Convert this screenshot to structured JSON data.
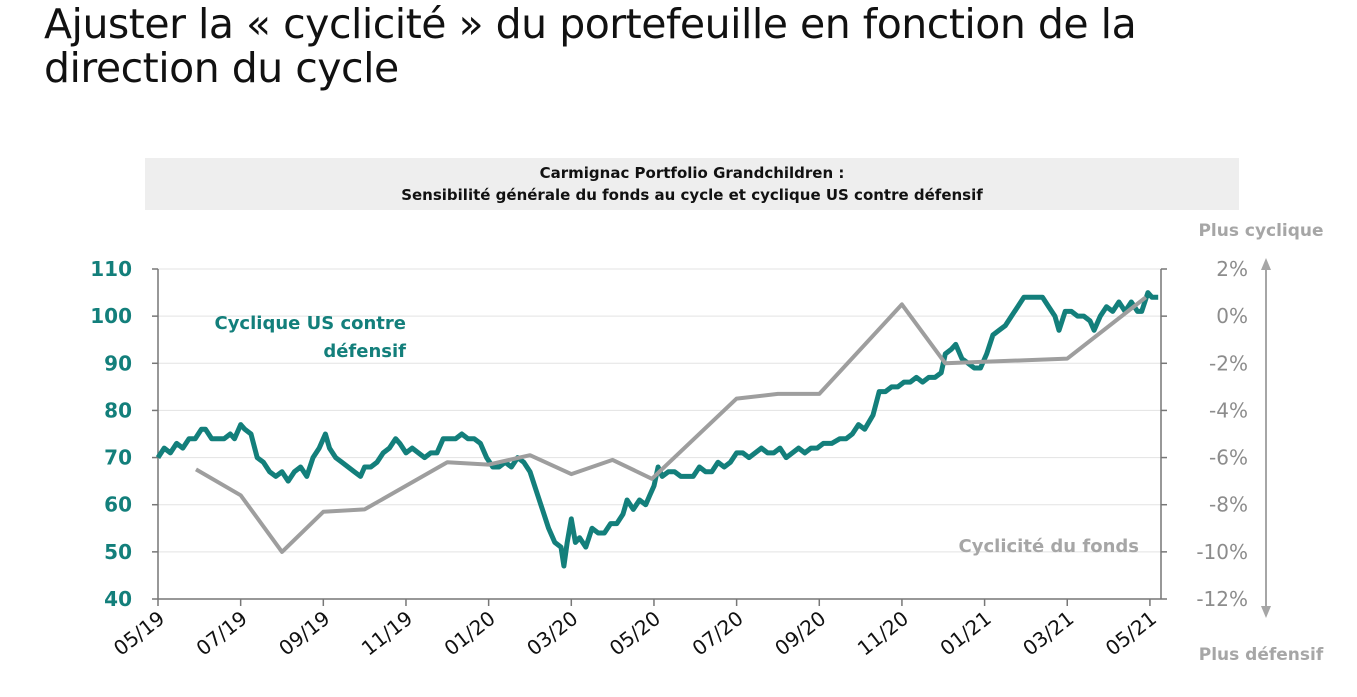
{
  "page_title": "Ajuster la « cyclicité » du portefeuille en fonction de la direction du cycle",
  "banner": {
    "line1": "Carmignac Portfolio Grandchildren :",
    "line2": "Sensibilité générale du fonds au cycle et cyclique US contre défensif"
  },
  "side_labels": {
    "top": "Plus cyclique",
    "bottom": "Plus défensif"
  },
  "colors": {
    "teal": "#137f7b",
    "gray": "#9e9e9e",
    "grid": "#e3e3e3"
  },
  "chart_data": {
    "type": "line",
    "x_tick_labels": [
      "05/19",
      "07/19",
      "09/19",
      "11/19",
      "01/20",
      "03/20",
      "05/20",
      "07/20",
      "09/20",
      "11/20",
      "01/21",
      "03/21",
      "05/21"
    ],
    "x_unit": "months since 05/19",
    "xlim": [
      0,
      24.3
    ],
    "left_axis": {
      "ylim": [
        40,
        110
      ],
      "ticks": [
        "40",
        "50",
        "60",
        "70",
        "80",
        "90",
        "100",
        "110"
      ]
    },
    "right_axis": {
      "ylim": [
        -12,
        2
      ],
      "ticks": [
        "-12%",
        "-10%",
        "-8%",
        "-6%",
        "-4%",
        "-2%",
        "0%",
        "2%"
      ]
    },
    "grid": true,
    "series": [
      {
        "name": "Cyclique US contre défensif",
        "label_line1": "Cyclique US contre",
        "label_line2": "défensif",
        "axis": "left",
        "color": "#137f7b",
        "points": [
          [
            0,
            70
          ],
          [
            0.15,
            72
          ],
          [
            0.3,
            71
          ],
          [
            0.45,
            73
          ],
          [
            0.6,
            72
          ],
          [
            0.75,
            74
          ],
          [
            0.9,
            74
          ],
          [
            1.05,
            76
          ],
          [
            1.15,
            76
          ],
          [
            1.3,
            74
          ],
          [
            1.45,
            74
          ],
          [
            1.6,
            74
          ],
          [
            1.75,
            75
          ],
          [
            1.85,
            74
          ],
          [
            2.0,
            77
          ],
          [
            2.1,
            76
          ],
          [
            2.25,
            75
          ],
          [
            2.4,
            70
          ],
          [
            2.55,
            69
          ],
          [
            2.7,
            67
          ],
          [
            2.85,
            66
          ],
          [
            3.0,
            67
          ],
          [
            3.15,
            65
          ],
          [
            3.3,
            67
          ],
          [
            3.45,
            68
          ],
          [
            3.6,
            66
          ],
          [
            3.75,
            70
          ],
          [
            3.9,
            72
          ],
          [
            4.05,
            75
          ],
          [
            4.15,
            72
          ],
          [
            4.3,
            70
          ],
          [
            4.45,
            69
          ],
          [
            4.6,
            68
          ],
          [
            4.75,
            67
          ],
          [
            4.9,
            66
          ],
          [
            5.0,
            68
          ],
          [
            5.15,
            68
          ],
          [
            5.3,
            69
          ],
          [
            5.45,
            71
          ],
          [
            5.6,
            72
          ],
          [
            5.75,
            74
          ],
          [
            5.85,
            73
          ],
          [
            6.0,
            71
          ],
          [
            6.15,
            72
          ],
          [
            6.3,
            71
          ],
          [
            6.45,
            70
          ],
          [
            6.6,
            71
          ],
          [
            6.75,
            71
          ],
          [
            6.9,
            74
          ],
          [
            7.05,
            74
          ],
          [
            7.2,
            74
          ],
          [
            7.35,
            75
          ],
          [
            7.5,
            74
          ],
          [
            7.65,
            74
          ],
          [
            7.8,
            73
          ],
          [
            7.95,
            70
          ],
          [
            8.1,
            68
          ],
          [
            8.25,
            68
          ],
          [
            8.4,
            69
          ],
          [
            8.55,
            68
          ],
          [
            8.7,
            70
          ],
          [
            8.85,
            69
          ],
          [
            9.0,
            67
          ],
          [
            9.15,
            63
          ],
          [
            9.3,
            59
          ],
          [
            9.45,
            55
          ],
          [
            9.6,
            52
          ],
          [
            9.75,
            51
          ],
          [
            9.82,
            47
          ],
          [
            9.9,
            52
          ],
          [
            10.0,
            57
          ],
          [
            10.1,
            52
          ],
          [
            10.2,
            53
          ],
          [
            10.35,
            51
          ],
          [
            10.5,
            55
          ],
          [
            10.65,
            54
          ],
          [
            10.8,
            54
          ],
          [
            10.95,
            56
          ],
          [
            11.1,
            56
          ],
          [
            11.25,
            58
          ],
          [
            11.35,
            61
          ],
          [
            11.5,
            59
          ],
          [
            11.65,
            61
          ],
          [
            11.8,
            60
          ],
          [
            11.9,
            62
          ],
          [
            12.0,
            64
          ],
          [
            12.1,
            68
          ],
          [
            12.2,
            66
          ],
          [
            12.35,
            67
          ],
          [
            12.5,
            67
          ],
          [
            12.65,
            66
          ],
          [
            12.8,
            66
          ],
          [
            12.95,
            66
          ],
          [
            13.1,
            68
          ],
          [
            13.25,
            67
          ],
          [
            13.4,
            67
          ],
          [
            13.55,
            69
          ],
          [
            13.7,
            68
          ],
          [
            13.85,
            69
          ],
          [
            14.0,
            71
          ],
          [
            14.15,
            71
          ],
          [
            14.3,
            70
          ],
          [
            14.45,
            71
          ],
          [
            14.6,
            72
          ],
          [
            14.75,
            71
          ],
          [
            14.9,
            71
          ],
          [
            15.05,
            72
          ],
          [
            15.2,
            70
          ],
          [
            15.35,
            71
          ],
          [
            15.5,
            72
          ],
          [
            15.65,
            71
          ],
          [
            15.8,
            72
          ],
          [
            15.95,
            72
          ],
          [
            16.1,
            73
          ],
          [
            16.3,
            73
          ],
          [
            16.5,
            74
          ],
          [
            16.65,
            74
          ],
          [
            16.8,
            75
          ],
          [
            16.95,
            77
          ],
          [
            17.1,
            76
          ],
          [
            17.3,
            79
          ],
          [
            17.45,
            84
          ],
          [
            17.6,
            84
          ],
          [
            17.75,
            85
          ],
          [
            17.9,
            85
          ],
          [
            18.05,
            86
          ],
          [
            18.2,
            86
          ],
          [
            18.35,
            87
          ],
          [
            18.5,
            86
          ],
          [
            18.65,
            87
          ],
          [
            18.8,
            87
          ],
          [
            18.95,
            88
          ],
          [
            19.05,
            92
          ],
          [
            19.2,
            93
          ],
          [
            19.3,
            94
          ],
          [
            19.45,
            91
          ],
          [
            19.6,
            90
          ],
          [
            19.75,
            89
          ],
          [
            19.9,
            89
          ],
          [
            20.05,
            92
          ],
          [
            20.2,
            96
          ],
          [
            20.35,
            97
          ],
          [
            20.5,
            98
          ],
          [
            20.65,
            100
          ],
          [
            20.8,
            102
          ],
          [
            20.95,
            104
          ],
          [
            21.1,
            104
          ],
          [
            21.25,
            104
          ],
          [
            21.4,
            104
          ],
          [
            21.55,
            102
          ],
          [
            21.7,
            100
          ],
          [
            21.8,
            97
          ],
          [
            21.95,
            101
          ],
          [
            22.1,
            101
          ],
          [
            22.25,
            100
          ],
          [
            22.4,
            100
          ],
          [
            22.55,
            99
          ],
          [
            22.65,
            97
          ],
          [
            22.8,
            100
          ],
          [
            22.95,
            102
          ],
          [
            23.1,
            101
          ],
          [
            23.25,
            103
          ],
          [
            23.4,
            101
          ],
          [
            23.55,
            103
          ],
          [
            23.7,
            101
          ],
          [
            23.8,
            101
          ],
          [
            23.95,
            105
          ],
          [
            24.05,
            104
          ],
          [
            24.2,
            104
          ]
        ]
      },
      {
        "name": "Cyclicité du fonds",
        "label": "Cyclicité du fonds",
        "axis": "right",
        "color": "#9e9e9e",
        "points": [
          [
            0.92,
            -6.5
          ],
          [
            2.0,
            -7.6
          ],
          [
            3.0,
            -10.0
          ],
          [
            4.0,
            -8.3
          ],
          [
            5.0,
            -8.2
          ],
          [
            7.0,
            -6.2
          ],
          [
            8.0,
            -6.3
          ],
          [
            9.0,
            -5.9
          ],
          [
            10.0,
            -6.7
          ],
          [
            11.0,
            -6.1
          ],
          [
            11.95,
            -6.9
          ],
          [
            14.0,
            -3.5
          ],
          [
            15.0,
            -3.3
          ],
          [
            16.0,
            -3.3
          ],
          [
            18.0,
            0.5
          ],
          [
            19.05,
            -2.0
          ],
          [
            22.0,
            -1.8
          ],
          [
            23.9,
            0.8
          ]
        ]
      }
    ]
  }
}
